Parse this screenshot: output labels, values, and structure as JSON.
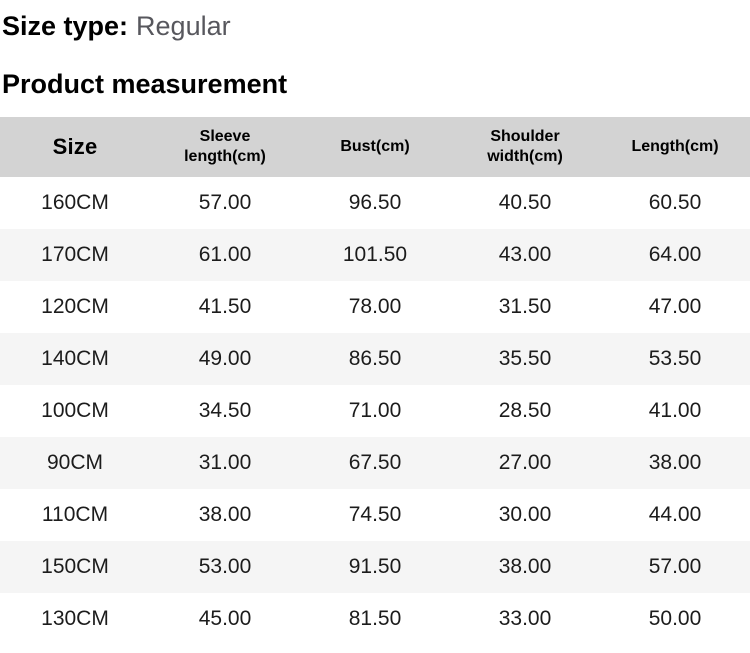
{
  "size_type": {
    "label": "Size type:",
    "value": "Regular"
  },
  "section_title": "Product measurement",
  "table": {
    "headers": [
      "Size",
      "Sleeve length(cm)",
      "Bust(cm)",
      "Shoulder width(cm)",
      "Length(cm)"
    ],
    "rows": [
      [
        "160CM",
        "57.00",
        "96.50",
        "40.50",
        "60.50"
      ],
      [
        "170CM",
        "61.00",
        "101.50",
        "43.00",
        "64.00"
      ],
      [
        "120CM",
        "41.50",
        "78.00",
        "31.50",
        "47.00"
      ],
      [
        "140CM",
        "49.00",
        "86.50",
        "35.50",
        "53.50"
      ],
      [
        "100CM",
        "34.50",
        "71.00",
        "28.50",
        "41.00"
      ],
      [
        "90CM",
        "31.00",
        "67.50",
        "27.00",
        "38.00"
      ],
      [
        "110CM",
        "38.00",
        "74.50",
        "30.00",
        "44.00"
      ],
      [
        "150CM",
        "53.00",
        "91.50",
        "38.00",
        "57.00"
      ],
      [
        "130CM",
        "45.00",
        "81.50",
        "33.00",
        "50.00"
      ]
    ]
  },
  "colors": {
    "header_bg": "#d3d3d3",
    "stripe_bg": "#f5f5f5",
    "heading_text": "#000000",
    "body_text": "#1c1c1c",
    "muted_text": "#57575d"
  }
}
